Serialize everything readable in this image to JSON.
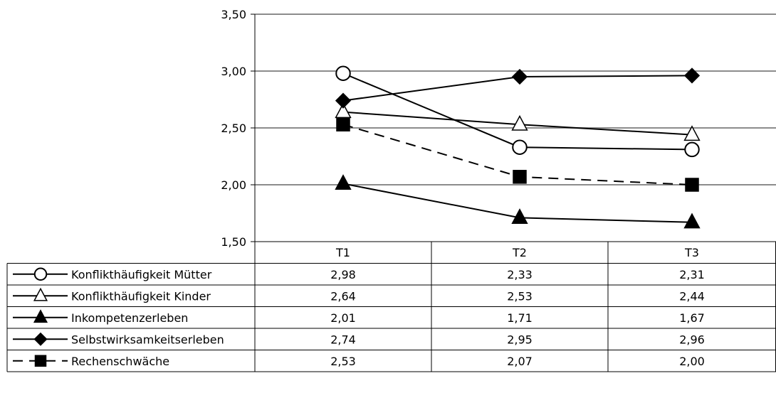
{
  "chart_data": {
    "type": "line",
    "categories": [
      "T1",
      "T2",
      "T3"
    ],
    "ylim": [
      1.5,
      3.5
    ],
    "yticks": [
      "1,50",
      "2,00",
      "2,50",
      "3,00",
      "3,50"
    ],
    "grid": true,
    "legend": "data-table-left",
    "series": [
      {
        "name": "Konflikthäufigkeit Mütter",
        "marker": "circle-open",
        "dash": false,
        "values": [
          2.98,
          2.33,
          2.31
        ],
        "labels": [
          "2,98",
          "2,33",
          "2,31"
        ]
      },
      {
        "name": "Konflikthäufigkeit Kinder",
        "marker": "triangle-open",
        "dash": false,
        "values": [
          2.64,
          2.53,
          2.44
        ],
        "labels": [
          "2,64",
          "2,53",
          "2,44"
        ]
      },
      {
        "name": "Inkompetenzerleben",
        "marker": "triangle-filled",
        "dash": false,
        "values": [
          2.01,
          1.71,
          1.67
        ],
        "labels": [
          "2,01",
          "1,71",
          "1,67"
        ]
      },
      {
        "name": "Selbstwirksamkeitserleben",
        "marker": "diamond-filled",
        "dash": false,
        "values": [
          2.74,
          2.95,
          2.96
        ],
        "labels": [
          "2,74",
          "2,95",
          "2,96"
        ]
      },
      {
        "name": "Rechenschwäche",
        "marker": "square-filled",
        "dash": true,
        "values": [
          2.53,
          2.07,
          2.0
        ],
        "labels": [
          "2,53",
          "2,07",
          "2,00"
        ]
      }
    ]
  }
}
